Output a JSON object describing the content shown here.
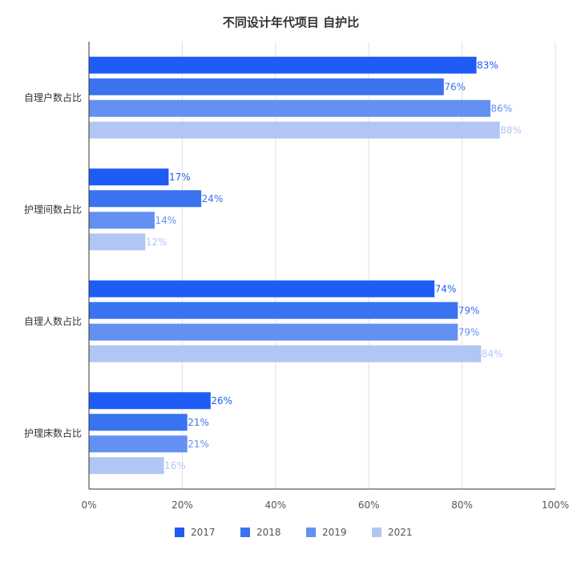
{
  "chart_data": {
    "type": "bar",
    "orientation": "horizontal",
    "title": "不同设计年代项目 自护比",
    "categories": [
      "自理户数占比",
      "护理间数占比",
      "自理人数占比",
      "护理床数占比"
    ],
    "series": [
      {
        "name": "2017",
        "color": "#1f5cf5",
        "values": [
          83,
          17,
          74,
          26
        ],
        "labels": [
          "83%",
          "17%",
          "74%",
          "26%"
        ]
      },
      {
        "name": "2018",
        "color": "#3a73f0",
        "values": [
          76,
          24,
          79,
          21
        ],
        "labels": [
          "76%",
          "24%",
          "79%",
          "21%"
        ]
      },
      {
        "name": "2019",
        "color": "#6490f2",
        "values": [
          86,
          14,
          79,
          21
        ],
        "labels": [
          "86%",
          "14%",
          "79%",
          "21%"
        ]
      },
      {
        "name": "2021",
        "color": "#b2c6f3",
        "values": [
          88,
          12,
          84,
          16
        ],
        "labels": [
          "88%",
          "12%",
          "84%",
          "16%"
        ]
      }
    ],
    "xlim": [
      0,
      100
    ],
    "x_ticks": [
      0,
      20,
      40,
      60,
      80,
      100
    ],
    "x_tick_labels": [
      "0%",
      "20%",
      "40%",
      "60%",
      "80%",
      "100%"
    ],
    "grid": true,
    "legend_position": "bottom-center"
  }
}
